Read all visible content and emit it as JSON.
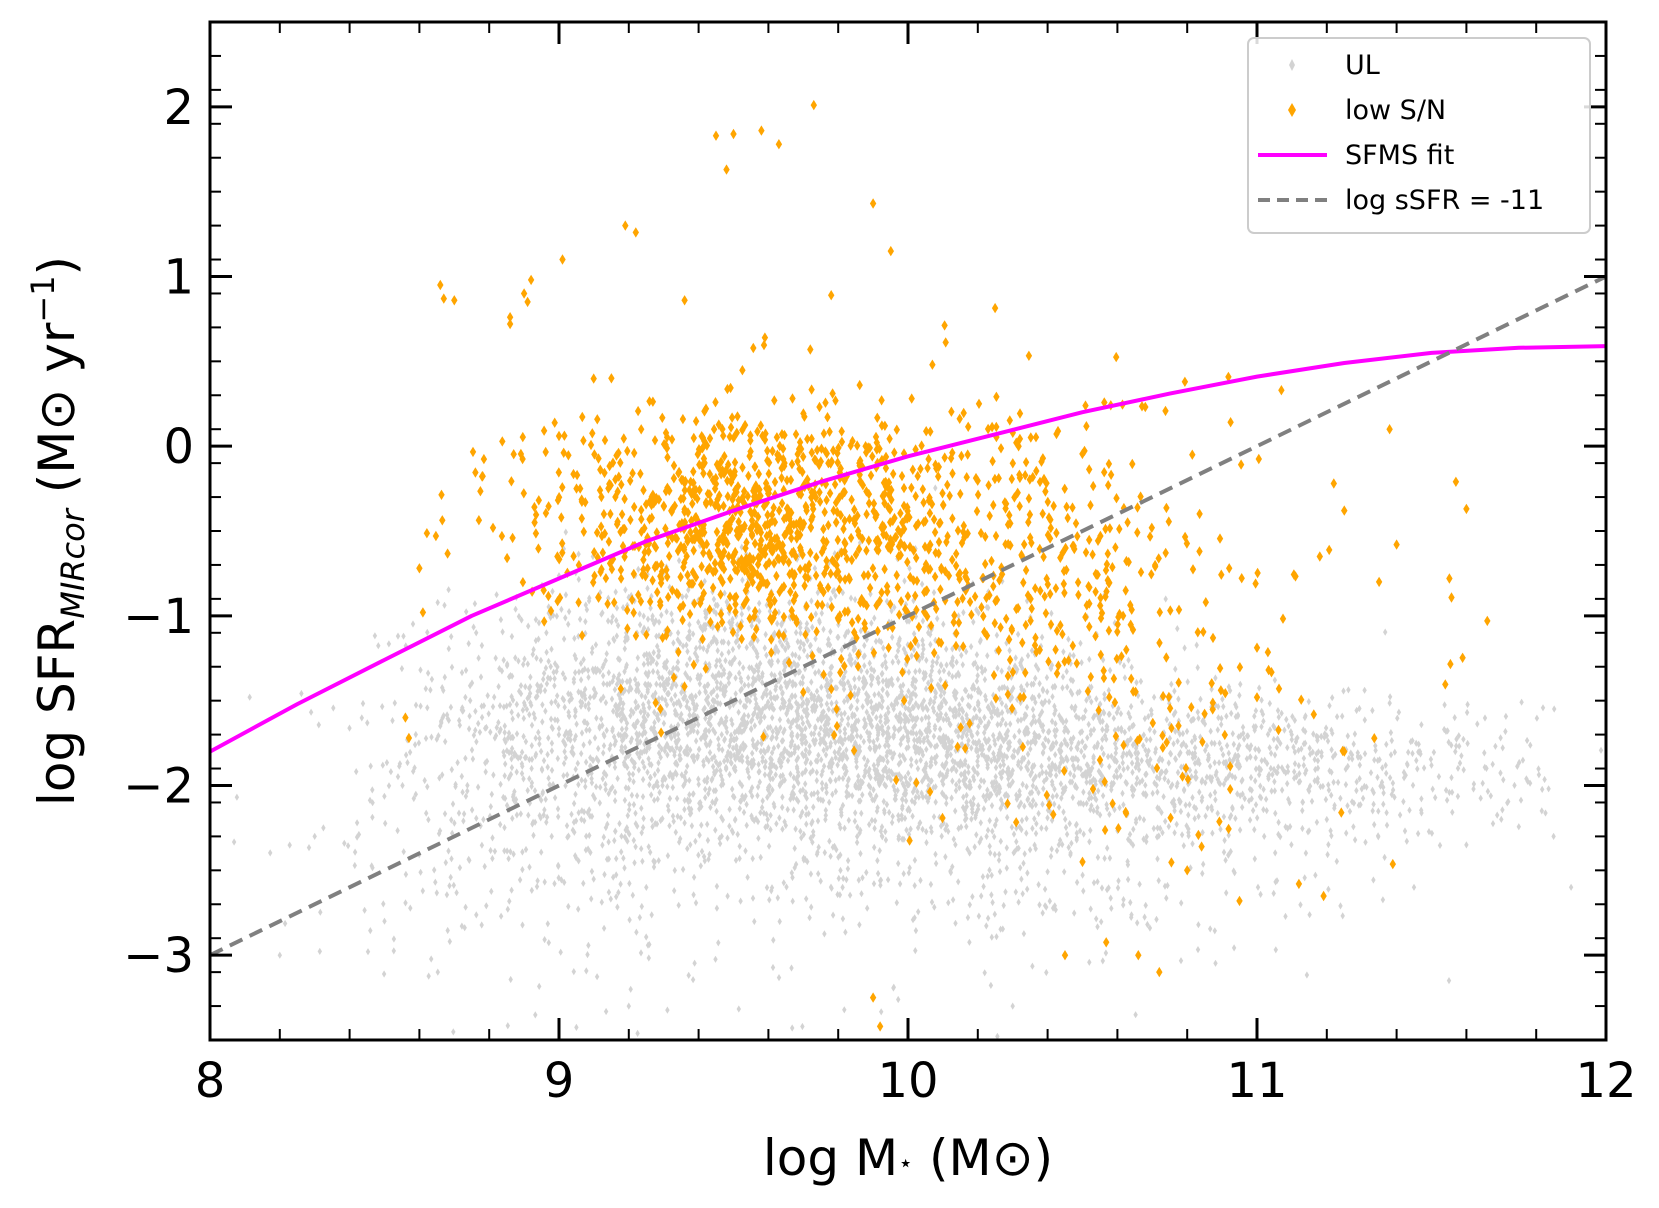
{
  "chart_data": {
    "type": "scatter",
    "title": "",
    "xlabel": {
      "prefix": "log M",
      "sub": "⋆",
      "suffix": " (M",
      "sun": "⊙",
      "close": ")"
    },
    "ylabel": {
      "prefix": "log SFR",
      "sub": "MIRcor",
      "mid": " (M",
      "sun": "⊙",
      "unit": " yr",
      "sup": "−1",
      "close": ")"
    },
    "xlim": [
      8,
      12
    ],
    "ylim": [
      -3.5,
      2.5
    ],
    "xticks": [
      8,
      9,
      10,
      11,
      12
    ],
    "xtick_labels": [
      "8",
      "9",
      "10",
      "11",
      "12"
    ],
    "yticks": [
      -3,
      -2,
      -1,
      0,
      1,
      2
    ],
    "ytick_labels": [
      "−3",
      "−2",
      "−1",
      "0",
      "1",
      "2"
    ],
    "x_minor_step": 0.2,
    "y_minor_step": 0.2,
    "grid": false,
    "legend_position": "top-right",
    "legend": [
      {
        "label": "UL",
        "kind": "marker",
        "color": "#d3d3d3"
      },
      {
        "label": "low S/N",
        "kind": "marker",
        "color": "#ffa500"
      },
      {
        "label": "SFMS fit",
        "kind": "line",
        "color": "#ff00ff",
        "dash": "solid"
      },
      {
        "label": "log sSFR = -11",
        "kind": "line",
        "color": "#808080",
        "dash": "dashed"
      }
    ],
    "series": [
      {
        "name": "UL",
        "type": "scatter",
        "color": "#d3d3d3",
        "marker": "diamond",
        "approx_count": 4500,
        "clusters": [
          {
            "cx": 9.45,
            "cy": -1.55,
            "sx": 0.38,
            "sy": 0.38,
            "n": 2000
          },
          {
            "cx": 10.1,
            "cy": -1.75,
            "sx": 0.35,
            "sy": 0.3,
            "n": 1300
          },
          {
            "cx": 10.9,
            "cy": -1.9,
            "sx": 0.45,
            "sy": 0.22,
            "n": 900
          },
          {
            "cx": 9.0,
            "cy": -2.2,
            "sx": 0.35,
            "sy": 0.45,
            "n": 400
          },
          {
            "cx": 10.3,
            "cy": -2.5,
            "sx": 0.45,
            "sy": 0.35,
            "n": 300
          }
        ],
        "points": [
          [
            8.3,
            -2.3
          ],
          [
            8.2,
            -3.0
          ],
          [
            8.5,
            -2.8
          ],
          [
            9.2,
            -3.3
          ],
          [
            10.3,
            -3.3
          ],
          [
            11.85,
            -2.3
          ],
          [
            11.9,
            -2.6
          ],
          [
            11.55,
            -3.15
          ],
          [
            11.6,
            -2.35
          ],
          [
            11.7,
            -2.2
          ],
          [
            11.45,
            -2.6
          ]
        ]
      },
      {
        "name": "low S/N",
        "type": "scatter",
        "color": "#ffa500",
        "marker": "diamond",
        "approx_count": 1500,
        "clusters": [
          {
            "cx": 9.5,
            "cy": -0.45,
            "sx": 0.3,
            "sy": 0.35,
            "n": 850
          },
          {
            "cx": 10.1,
            "cy": -0.55,
            "sx": 0.35,
            "sy": 0.45,
            "n": 450
          },
          {
            "cx": 10.6,
            "cy": -1.2,
            "sx": 0.3,
            "sy": 0.6,
            "n": 200
          }
        ],
        "points": [
          [
            9.73,
            2.01
          ],
          [
            9.45,
            1.83
          ],
          [
            9.5,
            1.84
          ],
          [
            9.58,
            1.86
          ],
          [
            9.63,
            1.78
          ],
          [
            9.48,
            1.63
          ],
          [
            9.9,
            1.43
          ],
          [
            9.19,
            1.3
          ],
          [
            9.22,
            1.26
          ],
          [
            9.01,
            1.1
          ],
          [
            8.66,
            0.95
          ],
          [
            8.67,
            0.87
          ],
          [
            8.7,
            0.86
          ],
          [
            8.92,
            0.98
          ],
          [
            8.9,
            0.9
          ],
          [
            8.91,
            0.85
          ],
          [
            8.86,
            0.76
          ],
          [
            8.86,
            0.72
          ],
          [
            9.78,
            0.89
          ],
          [
            9.36,
            0.86
          ],
          [
            9.59,
            0.64
          ],
          [
            9.72,
            0.57
          ],
          [
            10.07,
            0.48
          ],
          [
            11.07,
            0.33
          ],
          [
            11.22,
            -0.22
          ],
          [
            11.25,
            -0.38
          ],
          [
            11.38,
            0.1
          ],
          [
            11.4,
            -0.58
          ],
          [
            11.35,
            -0.8
          ],
          [
            11.57,
            -0.21
          ],
          [
            11.6,
            -0.37
          ],
          [
            11.66,
            -1.03
          ],
          [
            11.18,
            -0.65
          ],
          [
            9.9,
            -3.25
          ],
          [
            9.92,
            -3.42
          ],
          [
            11.12,
            -2.58
          ],
          [
            10.72,
            -3.1
          ],
          [
            10.66,
            -3.0
          ],
          [
            10.45,
            -3.0
          ],
          [
            10.8,
            -2.5
          ],
          [
            10.95,
            -2.68
          ],
          [
            10.5,
            -2.45
          ],
          [
            8.6,
            -0.72
          ],
          [
            8.61,
            -0.98
          ],
          [
            8.56,
            -1.6
          ],
          [
            8.57,
            -1.72
          ],
          [
            8.93,
            -0.45
          ],
          [
            9.0,
            0.06
          ],
          [
            9.15,
            0.4
          ],
          [
            9.05,
            -0.25
          ],
          [
            11.0,
            -1.48
          ],
          [
            10.55,
            -1.85
          ],
          [
            11.25,
            -1.8
          ]
        ]
      }
    ],
    "lines": [
      {
        "name": "SFMS fit",
        "color": "#ff00ff",
        "x": [
          8.0,
          8.25,
          8.5,
          8.75,
          9.0,
          9.25,
          9.5,
          9.75,
          10.0,
          10.25,
          10.5,
          10.75,
          11.0,
          11.25,
          11.5,
          11.75,
          12.0
        ],
        "y": [
          -1.8,
          -1.52,
          -1.26,
          -1.0,
          -0.78,
          -0.56,
          -0.38,
          -0.21,
          -0.06,
          0.07,
          0.2,
          0.31,
          0.41,
          0.49,
          0.55,
          0.58,
          0.59
        ]
      },
      {
        "name": "log sSFR = -11",
        "color": "#808080",
        "x": [
          8.0,
          12.0
        ],
        "y": [
          -3.0,
          1.0
        ]
      }
    ]
  }
}
